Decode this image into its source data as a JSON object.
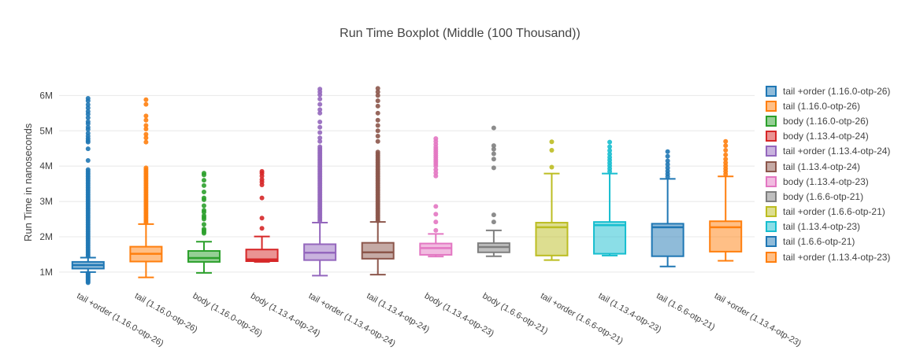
{
  "title": "Run Time Boxplot (Middle (100 Thousand))",
  "yaxis": {
    "title": "Run Time in nanoseconds",
    "tick_labels": [
      "1M",
      "2M",
      "3M",
      "4M",
      "5M",
      "6M"
    ],
    "tick_values": [
      1,
      2,
      3,
      4,
      5,
      6
    ]
  },
  "chart_data": {
    "type": "box",
    "title": "Run Time Boxplot (Middle (100 Thousand))",
    "xlabel": "",
    "ylabel": "Run Time in nanoseconds",
    "values_unit": "millions of nanoseconds",
    "ylim": [
      0.62,
      6.52
    ],
    "yticks": [
      "1M",
      "2M",
      "3M",
      "4M",
      "5M",
      "6M"
    ],
    "grid": true,
    "legend_position": "right",
    "series": [
      {
        "name": "tail +order (1.16.0-otp-26)",
        "color": "#1f77b4",
        "low": 1.0,
        "q1": 1.1,
        "median": 1.2,
        "q3": 1.29,
        "high": 1.41,
        "outlier_bands": [
          [
            1.45,
            3.9,
            0.05
          ],
          [
            0.7,
            0.97,
            0.03
          ]
        ],
        "outliers": [
          4.16,
          4.49,
          4.68,
          4.72,
          4.78,
          4.85,
          4.93,
          5.04,
          5.1,
          5.2,
          5.26,
          5.37,
          5.47,
          5.55,
          5.65,
          5.74,
          5.85,
          5.92
        ]
      },
      {
        "name": "tail (1.16.0-otp-26)",
        "color": "#ff7f0e",
        "low": 0.85,
        "q1": 1.3,
        "median": 1.52,
        "q3": 1.72,
        "high": 2.36,
        "outlier_bands": [
          [
            2.4,
            3.95,
            0.05
          ]
        ],
        "outliers": [
          4.68,
          4.8,
          4.9,
          5.05,
          5.15,
          5.3,
          5.42,
          5.75,
          5.88
        ]
      },
      {
        "name": "body (1.16.0-otp-26)",
        "color": "#2ca02c",
        "low": 0.98,
        "q1": 1.29,
        "median": 1.4,
        "q3": 1.6,
        "high": 1.86,
        "outlier_bands": [],
        "outliers": [
          2.1,
          2.14,
          2.18,
          2.22,
          2.35,
          2.5,
          2.55,
          2.6,
          2.7,
          2.75,
          2.88,
          3.05,
          3.1,
          3.27,
          3.45,
          3.6,
          3.75,
          3.8
        ]
      },
      {
        "name": "body (1.13.4-otp-24)",
        "color": "#d62728",
        "low": 1.29,
        "q1": 1.31,
        "median": 1.36,
        "q3": 1.64,
        "high": 2.01,
        "outlier_bands": [],
        "outliers": [
          2.24,
          2.53,
          3.1,
          3.47,
          3.55,
          3.62,
          3.72,
          3.8,
          3.85
        ]
      },
      {
        "name": "tail +order (1.13.4-otp-24)",
        "color": "#9467bd",
        "low": 0.9,
        "q1": 1.34,
        "median": 1.55,
        "q3": 1.79,
        "high": 2.4,
        "outlier_bands": [
          [
            2.45,
            4.55,
            0.05
          ]
        ],
        "outliers": [
          4.7,
          4.8,
          4.95,
          5.1,
          5.25,
          5.5,
          5.6,
          5.75,
          5.9,
          6.02,
          6.1,
          6.18
        ]
      },
      {
        "name": "tail (1.13.4-otp-24)",
        "color": "#8c564b",
        "low": 0.93,
        "q1": 1.38,
        "median": 1.56,
        "q3": 1.83,
        "high": 2.42,
        "outlier_bands": [
          [
            2.45,
            4.4,
            0.05
          ]
        ],
        "outliers": [
          4.7,
          4.85,
          5.0,
          5.15,
          5.3,
          5.5,
          5.7,
          5.85,
          6.0,
          6.1,
          6.2
        ]
      },
      {
        "name": "body (1.13.4-otp-23)",
        "color": "#e377c2",
        "low": 1.44,
        "q1": 1.49,
        "median": 1.68,
        "q3": 1.81,
        "high": 2.08,
        "outlier_bands": [],
        "outliers": [
          2.18,
          2.42,
          2.64,
          2.86,
          3.72,
          3.81,
          3.9,
          4.0,
          4.06,
          4.12,
          4.18,
          4.24,
          4.3,
          4.36,
          4.42,
          4.48,
          4.54,
          4.62,
          4.7,
          4.78
        ]
      },
      {
        "name": "body (1.6.6-otp-21)",
        "color": "#7f7f7f",
        "low": 1.45,
        "q1": 1.56,
        "median": 1.71,
        "q3": 1.82,
        "high": 2.18,
        "outlier_bands": [],
        "outliers": [
          2.42,
          2.62,
          3.95,
          4.2,
          4.35,
          4.48,
          4.58,
          5.08
        ]
      },
      {
        "name": "tail +order (1.6.6-otp-21)",
        "color": "#bcbd22",
        "low": 1.34,
        "q1": 1.47,
        "median": 2.27,
        "q3": 2.4,
        "high": 3.79,
        "outlier_bands": [],
        "outliers": [
          3.97,
          4.45,
          4.69
        ]
      },
      {
        "name": "tail (1.13.4-otp-23)",
        "color": "#17becf",
        "low": 1.47,
        "q1": 1.52,
        "median": 2.33,
        "q3": 2.42,
        "high": 3.79,
        "outlier_bands": [],
        "outliers": [
          3.85,
          3.93,
          4.01,
          4.09,
          4.17,
          4.25,
          4.34,
          4.44,
          4.55,
          4.68
        ]
      },
      {
        "name": "tail (1.6.6-otp-21)",
        "color": "#1f77b4",
        "low": 1.16,
        "q1": 1.45,
        "median": 2.27,
        "q3": 2.37,
        "high": 3.64,
        "outlier_bands": [],
        "outliers": [
          3.7,
          3.78,
          3.86,
          3.95,
          4.05,
          4.15,
          4.28,
          4.41
        ]
      },
      {
        "name": "tail +order (1.13.4-otp-23)",
        "color": "#ff7f0e",
        "low": 1.32,
        "q1": 1.58,
        "median": 2.27,
        "q3": 2.44,
        "high": 3.71,
        "outlier_bands": [],
        "outliers": [
          3.77,
          3.85,
          3.93,
          4.01,
          4.1,
          4.2,
          4.32,
          4.45,
          4.58,
          4.7
        ]
      }
    ]
  }
}
